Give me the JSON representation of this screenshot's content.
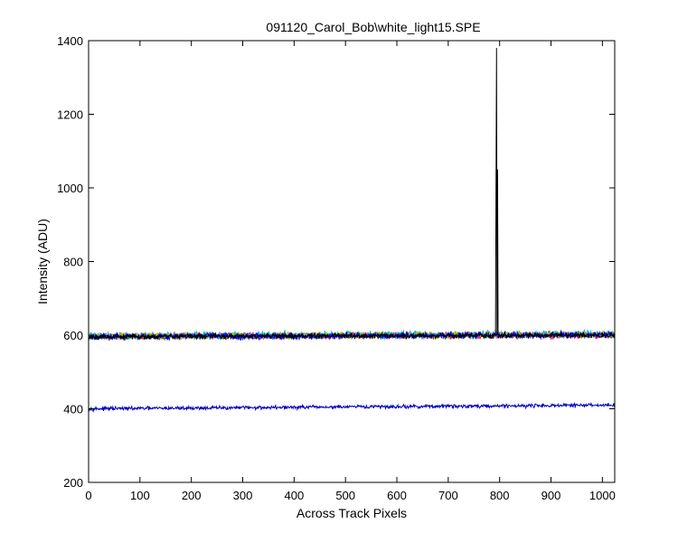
{
  "chart_data": {
    "type": "line",
    "title": "091120_Carol_Bob\\white_light15.SPE",
    "xlabel": "Across Track Pixels",
    "ylabel": "Intensity (ADU)",
    "xlim": [
      0,
      1024
    ],
    "ylim": [
      200,
      1400
    ],
    "xticks": [
      0,
      100,
      200,
      300,
      400,
      500,
      600,
      700,
      800,
      900,
      1000
    ],
    "yticks": [
      200,
      400,
      600,
      800,
      1000,
      1200,
      1400
    ],
    "grid": false,
    "legend": "none",
    "series": [
      {
        "color": "#ff0000",
        "baseline": [
          596,
          600
        ],
        "noise": 6,
        "seed": 11
      },
      {
        "color": "#00aa00",
        "baseline": [
          596,
          601
        ],
        "noise": 6,
        "seed": 23
      },
      {
        "color": "#ff00ff",
        "baseline": [
          597,
          601
        ],
        "noise": 6,
        "seed": 37
      },
      {
        "color": "#00bfbf",
        "baseline": [
          598,
          603
        ],
        "noise": 7,
        "seed": 41
      },
      {
        "color": "#bfbf00",
        "baseline": [
          597,
          602
        ],
        "noise": 6,
        "seed": 53
      },
      {
        "color": "#0000ff",
        "baseline": [
          596,
          601
        ],
        "noise": 6,
        "seed": 67
      },
      {
        "color": "#000000",
        "baseline": [
          596,
          600
        ],
        "noise": 5,
        "seed": 79,
        "spikes": [
          [
            793,
            1000
          ],
          [
            794,
            1380
          ],
          [
            796,
            1050
          ]
        ]
      },
      {
        "color": "#0000bf",
        "baseline": [
          400,
          410
        ],
        "noise": 3.5,
        "seed": 97
      }
    ]
  }
}
